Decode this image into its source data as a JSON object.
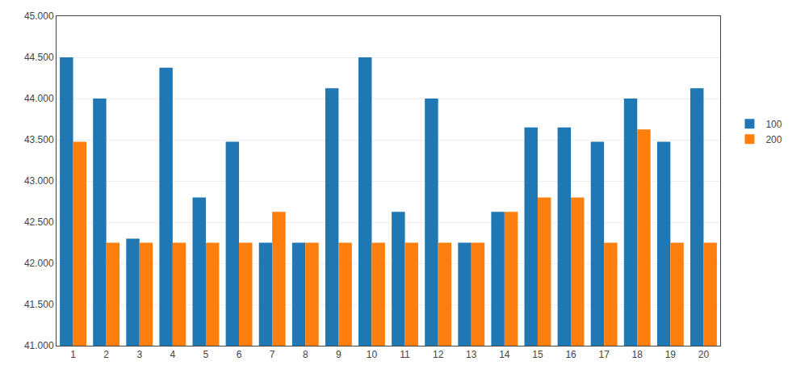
{
  "chart_data": {
    "type": "bar",
    "categories": [
      1,
      2,
      3,
      4,
      5,
      6,
      7,
      8,
      9,
      10,
      11,
      12,
      13,
      14,
      15,
      16,
      17,
      18,
      19,
      20
    ],
    "series": [
      {
        "name": "100",
        "values": [
          44.5,
          44.0,
          42.3,
          44.375,
          42.8,
          43.475,
          42.25,
          42.25,
          44.125,
          44.5,
          42.625,
          44.0,
          42.25,
          42.625,
          43.65,
          43.65,
          43.475,
          44.0,
          43.475,
          44.125
        ]
      },
      {
        "name": "200",
        "values": [
          43.475,
          42.25,
          42.25,
          42.25,
          42.25,
          42.25,
          42.625,
          42.25,
          42.25,
          42.25,
          42.25,
          42.25,
          42.25,
          42.625,
          42.8,
          42.8,
          42.25,
          43.625,
          42.25,
          42.25
        ]
      }
    ],
    "ylim": [
      41,
      45
    ],
    "yticks": [
      {
        "value": 41,
        "label": "41.000"
      },
      {
        "value": 41.5,
        "label": "41.500"
      },
      {
        "value": 42,
        "label": "42.000"
      },
      {
        "value": 42.5,
        "label": "42.500"
      },
      {
        "value": 43,
        "label": "43.000"
      },
      {
        "value": 43.5,
        "label": "43.500"
      },
      {
        "value": 44,
        "label": "44.000"
      },
      {
        "value": 44.5,
        "label": "44.500"
      },
      {
        "value": 45,
        "label": "45.000"
      }
    ],
    "grid": true,
    "legend": "right"
  }
}
